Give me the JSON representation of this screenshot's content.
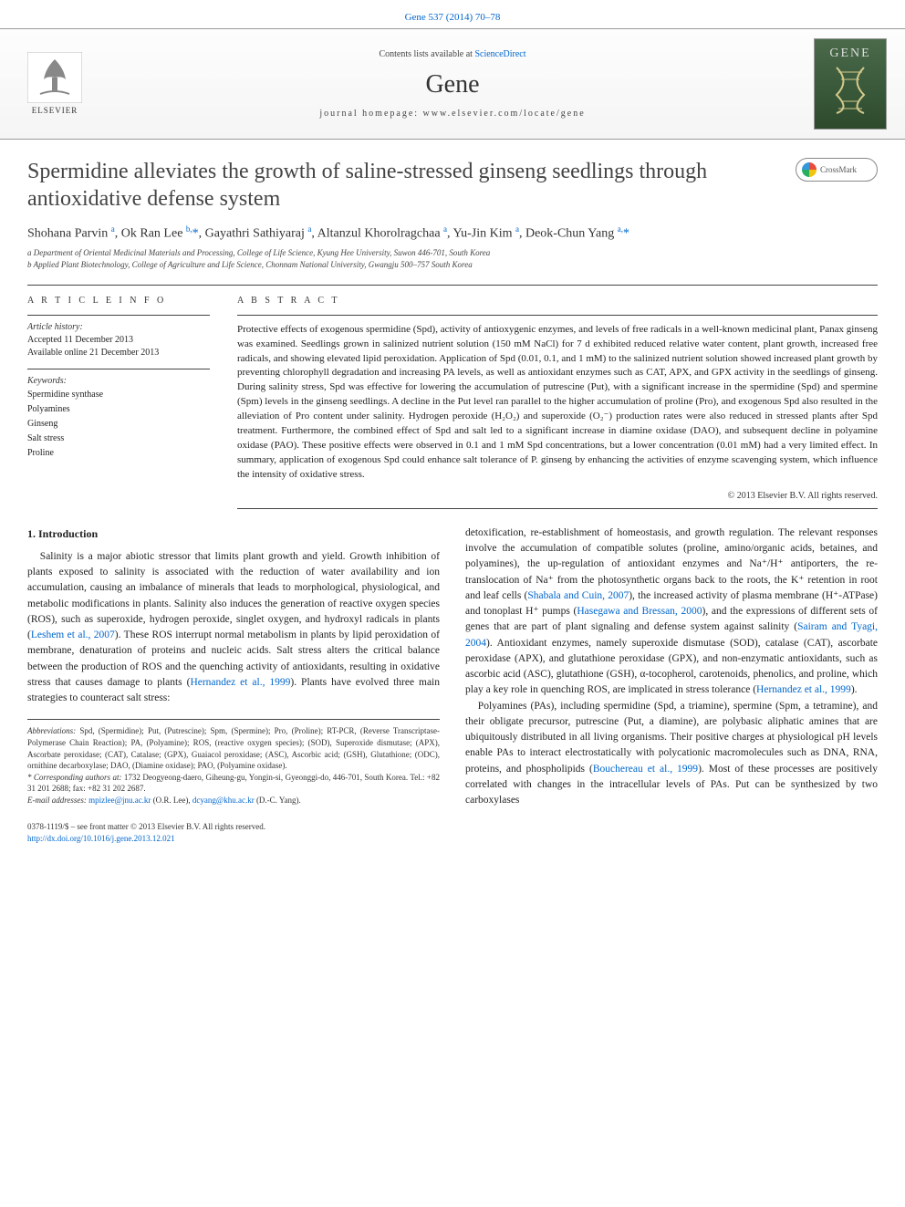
{
  "header": {
    "citation": "Gene 537 (2014) 70–78",
    "contents_prefix": "Contents lists available at ",
    "contents_link": "ScienceDirect",
    "journal": "Gene",
    "homepage_prefix": "journal homepage: ",
    "homepage": "www.elsevier.com/locate/gene",
    "publisher": "ELSEVIER",
    "cover_label": "GENE"
  },
  "crossmark": "CrossMark",
  "title": "Spermidine alleviates the growth of saline-stressed ginseng seedlings through antioxidative defense system",
  "authors_html": "Shohana Parvin <sup>a</sup>, Ok Ran Lee <sup>b,</sup><span class='star'>*</span>, Gayathri Sathiyaraj <sup>a</sup>, Altanzul Khorolragchaa <sup>a</sup>, Yu-Jin Kim <sup>a</sup>, Deok-Chun Yang <sup>a,</sup><span class='star'>*</span>",
  "affiliations": [
    "a Department of Oriental Medicinal Materials and Processing, College of Life Science, Kyung Hee University, Suwon 446-701, South Korea",
    "b Applied Plant Biotechnology, College of Agriculture and Life Science, Chonnam National University, Gwangju 500–757 South Korea"
  ],
  "article_info": {
    "heading": "A R T I C L E   I N F O",
    "history_label": "Article history:",
    "accepted": "Accepted 11 December 2013",
    "online": "Available online 21 December 2013",
    "keywords_label": "Keywords:",
    "keywords": [
      "Spermidine synthase",
      "Polyamines",
      "Ginseng",
      "Salt stress",
      "Proline"
    ]
  },
  "abstract": {
    "heading": "A B S T R A C T",
    "text": "Protective effects of exogenous spermidine (Spd), activity of antioxygenic enzymes, and levels of free radicals in a well-known medicinal plant, Panax ginseng was examined. Seedlings grown in salinized nutrient solution (150 mM NaCl) for 7 d exhibited reduced relative water content, plant growth, increased free radicals, and showing elevated lipid peroxidation. Application of Spd (0.01, 0.1, and 1 mM) to the salinized nutrient solution showed increased plant growth by preventing chlorophyll degradation and increasing PA levels, as well as antioxidant enzymes such as CAT, APX, and GPX activity in the seedlings of ginseng. During salinity stress, Spd was effective for lowering the accumulation of putrescine (Put), with a significant increase in the spermidine (Spd) and spermine (Spm) levels in the ginseng seedlings. A decline in the Put level ran parallel to the higher accumulation of proline (Pro), and exogenous Spd also resulted in the alleviation of Pro content under salinity. Hydrogen peroxide (H₂O₂) and superoxide (O₂⁻) production rates were also reduced in stressed plants after Spd treatment. Furthermore, the combined effect of Spd and salt led to a significant increase in diamine oxidase (DAO), and subsequent decline in polyamine oxidase (PAO). These positive effects were observed in 0.1 and 1 mM Spd concentrations, but a lower concentration (0.01 mM) had a very limited effect. In summary, application of exogenous Spd could enhance salt tolerance of P. ginseng by enhancing the activities of enzyme scavenging system, which influence the intensity of oxidative stress.",
    "copyright": "© 2013 Elsevier B.V. All rights reserved."
  },
  "intro": {
    "heading": "1. Introduction",
    "para1": "Salinity is a major abiotic stressor that limits plant growth and yield. Growth inhibition of plants exposed to salinity is associated with the reduction of water availability and ion accumulation, causing an imbalance of minerals that leads to morphological, physiological, and metabolic modifications in plants. Salinity also induces the generation of reactive oxygen species (ROS), such as superoxide, hydrogen peroxide, singlet oxygen, and hydroxyl radicals in plants (",
    "ref1": "Leshem et al., 2007",
    "para1b": "). These ROS interrupt normal metabolism in plants by lipid peroxidation of membrane, denaturation of proteins and nucleic acids. Salt stress alters the critical balance between the production of ROS and the quenching activity of antioxidants, resulting in oxidative stress that causes damage to plants (",
    "ref2": "Hernandez et al., 1999",
    "para1c": "). Plants have evolved three main strategies to counteract salt stress:",
    "para2a": "detoxification, re-establishment of homeostasis, and growth regulation. The relevant responses involve the accumulation of compatible solutes (proline, amino/organic acids, betaines, and polyamines), the up-regulation of antioxidant enzymes and Na⁺/H⁺ antiporters, the re-translocation of Na⁺ from the photosynthetic organs back to the roots, the K⁺ retention in root and leaf cells (",
    "ref3": "Shabala and Cuin, 2007",
    "para2b": "), the increased activity of plasma membrane (H⁺-ATPase) and tonoplast H⁺ pumps (",
    "ref4": "Hasegawa and Bressan, 2000",
    "para2c": "), and the expressions of different sets of genes that are part of plant signaling and defense system against salinity (",
    "ref5": "Sairam and Tyagi, 2004",
    "para2d": "). Antioxidant enzymes, namely superoxide dismutase (SOD), catalase (CAT), ascorbate peroxidase (APX), and glutathione peroxidase (GPX), and non-enzymatic antioxidants, such as ascorbic acid (ASC), glutathione (GSH), α-tocopherol, carotenoids, phenolics, and proline, which play a key role in quenching ROS, are implicated in stress tolerance (",
    "ref6": "Hernandez et al., 1999",
    "para2e": ").",
    "para3a": "Polyamines (PAs), including spermidine (Spd, a triamine), spermine (Spm, a tetramine), and their obligate precursor, putrescine (Put, a diamine), are polybasic aliphatic amines that are ubiquitously distributed in all living organisms. Their positive charges at physiological pH levels enable PAs to interact electrostatically with polycationic macromolecules such as DNA, RNA, proteins, and phospholipids (",
    "ref7": "Bouchereau et al., 1999",
    "para3b": "). Most of these processes are positively correlated with changes in the intracellular levels of PAs. Put can be synthesized by two carboxylases"
  },
  "footnotes": {
    "abbrev_label": "Abbreviations:",
    "abbrev": " Spd, (Spermidine); Put, (Putrescine); Spm, (Spermine); Pro, (Proline); RT-PCR, (Reverse Transcriptase-Polymerase Chain Reaction); PA, (Polyamine); ROS, (reactive oxygen species); (SOD), Superoxide dismutase; (APX), Ascorbate peroxidase; (CAT), Catalase; (GPX), Guaiacol peroxidase; (ASC), Ascorbic acid; (GSH), Glutathione; (ODC), ornithine decarboxylase; DAO, (Diamine oxidase); PAO, (Polyamine oxidase).",
    "corr_label": "* Corresponding authors at:",
    "corr": " 1732 Deogyeong-daero, Giheung-gu, Yongin-si, Gyeonggi-do, 446-701, South Korea. Tel.: +82 31 201 2688; fax: +82 31 202 2687.",
    "email_label": "E-mail addresses: ",
    "email1": "mpizlee@jnu.ac.kr",
    "email1_sfx": " (O.R. Lee), ",
    "email2": "dcyang@khu.ac.kr",
    "email2_sfx": " (D.-C. Yang)."
  },
  "footer": {
    "left1": "0378-1119/$ – see front matter © 2013 Elsevier B.V. All rights reserved.",
    "doi": "http://dx.doi.org/10.1016/j.gene.2013.12.021"
  },
  "colors": {
    "link": "#0066cc",
    "rule": "#444444",
    "text": "#222222",
    "elsevier_orange": "#e67e22",
    "cover_green": "#3d5a3d"
  }
}
